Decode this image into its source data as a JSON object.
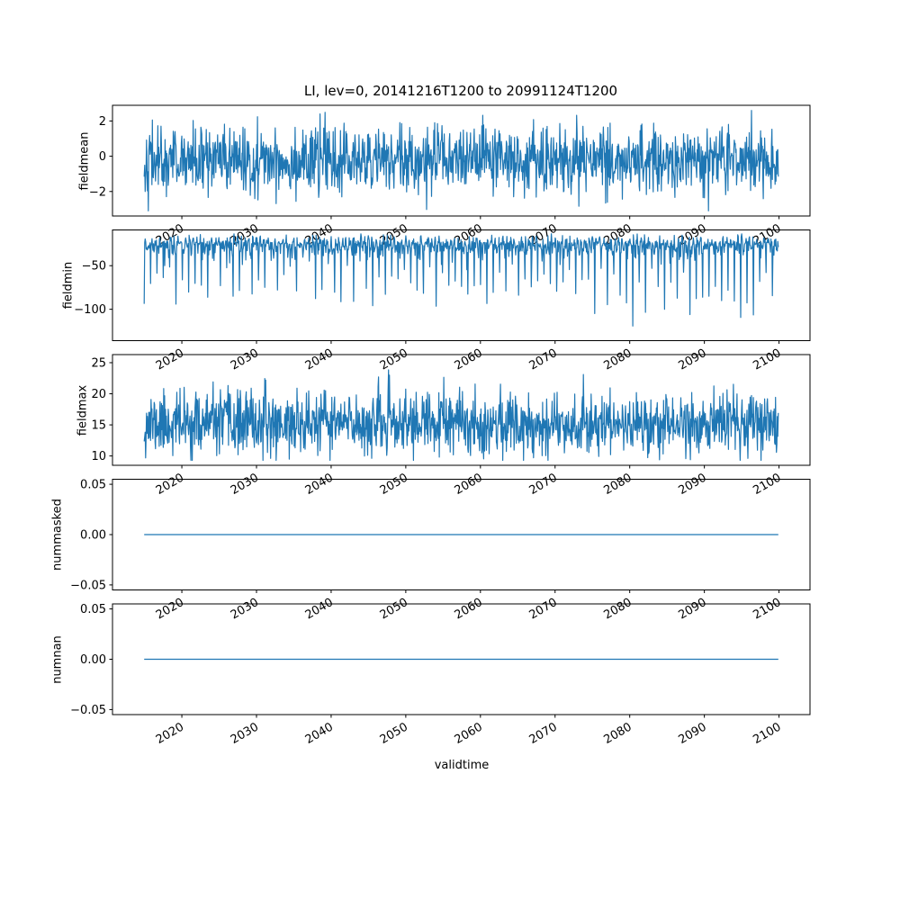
{
  "figure": {
    "background": "#ffffff"
  },
  "chart_data": {
    "type": "line",
    "title": "LI, lev=0, 20141216T1200 to 20991124T1200",
    "xlabel": "validtime",
    "line_color": "#1f77b4",
    "grid": false,
    "legend": "none",
    "xaxis": {
      "lim": [
        2010.71,
        2104.15
      ],
      "data_range": [
        2014.96,
        2099.9
      ],
      "label": "validtime",
      "ticks": [
        {
          "v": 2020,
          "label": "2020"
        },
        {
          "v": 2030,
          "label": "2030"
        },
        {
          "v": 2040,
          "label": "2040"
        },
        {
          "v": 2050,
          "label": "2050"
        },
        {
          "v": 2060,
          "label": "2060"
        },
        {
          "v": 2070,
          "label": "2070"
        },
        {
          "v": 2080,
          "label": "2080"
        },
        {
          "v": 2090,
          "label": "2090"
        },
        {
          "v": 2100,
          "label": "2100"
        }
      ]
    },
    "subplots": [
      {
        "ylabel": "fieldmean",
        "ylim": [
          -3.39,
          2.89
        ],
        "yticks": [
          {
            "v": 2,
            "label": "2"
          },
          {
            "v": 0,
            "label": "0"
          },
          {
            "v": -2,
            "label": "−2"
          }
        ],
        "series": {
          "name": "fieldmean",
          "kind": "gauss",
          "n": 1400,
          "mean": -0.25,
          "sd": 0.95,
          "min": -3.1,
          "max": 2.6,
          "seed": 42
        }
      },
      {
        "ylabel": "fieldmin",
        "ylim": [
          -136,
          -9
        ],
        "yticks": [
          {
            "v": -50,
            "label": "−50"
          },
          {
            "v": -100,
            "label": "−100"
          }
        ],
        "series": {
          "name": "fieldmin",
          "kind": "spiky",
          "n": 1300,
          "base": -13,
          "amp": 9,
          "cycle": 10,
          "period": 13,
          "spike_min": -40,
          "spike_rand": 55,
          "deep_start": 2040,
          "deep_extra": 40,
          "min": -132,
          "seed": 7
        }
      },
      {
        "ylabel": "fieldmax",
        "ylim": [
          8.5,
          26.3
        ],
        "yticks": [
          {
            "v": 25,
            "label": "25"
          },
          {
            "v": 20,
            "label": "20"
          },
          {
            "v": 15,
            "label": "15"
          },
          {
            "v": 10,
            "label": "10"
          }
        ],
        "series": {
          "name": "fieldmax",
          "kind": "gauss",
          "n": 1400,
          "mean": 15.2,
          "sd": 2.5,
          "min": 9.3,
          "max": 25.5,
          "seed": 11
        }
      },
      {
        "ylabel": "nummasked",
        "ylim": [
          -0.055,
          0.055
        ],
        "yticks": [
          {
            "v": 0.05,
            "label": "0.05"
          },
          {
            "v": 0,
            "label": "0.00"
          },
          {
            "v": -0.05,
            "label": "−0.05"
          }
        ],
        "series": {
          "name": "nummasked",
          "kind": "flat",
          "value": 0,
          "n": 2,
          "seed": 1
        }
      },
      {
        "ylabel": "numnan",
        "ylim": [
          -0.055,
          0.055
        ],
        "yticks": [
          {
            "v": 0.05,
            "label": "0.05"
          },
          {
            "v": 0,
            "label": "0.00"
          },
          {
            "v": -0.05,
            "label": "−0.05"
          }
        ],
        "series": {
          "name": "numnan",
          "kind": "flat",
          "value": 0,
          "n": 2,
          "seed": 2
        }
      }
    ]
  }
}
